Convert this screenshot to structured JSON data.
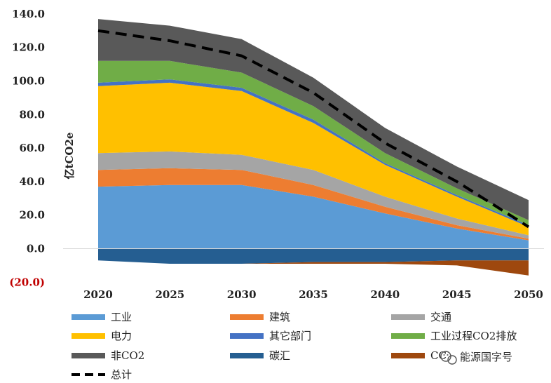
{
  "chart_data": {
    "type": "area",
    "title": "",
    "ylabel": "亿tCO2e",
    "xlabel": "",
    "x": [
      2020,
      2025,
      2030,
      2035,
      2040,
      2045,
      2050
    ],
    "ylim": [
      -20,
      140
    ],
    "yticks": [
      -20,
      0,
      20,
      40,
      60,
      80,
      100,
      120,
      140
    ],
    "ytick_labels": [
      "(20.0)",
      "0.0",
      "20.0",
      "40.0",
      "60.0",
      "80.0",
      "100.0",
      "120.0",
      "140.0"
    ],
    "grid": false,
    "legend_position": "bottom",
    "series": [
      {
        "name": "工业",
        "color": "#5b9bd5",
        "values": [
          37,
          38,
          38,
          31,
          21,
          12,
          5
        ]
      },
      {
        "name": "建筑",
        "color": "#ed7d31",
        "values": [
          10,
          10,
          9,
          7,
          4,
          2,
          1
        ]
      },
      {
        "name": "交通",
        "color": "#a5a5a5",
        "values": [
          10,
          10,
          9,
          9,
          6,
          4,
          2
        ]
      },
      {
        "name": "电力",
        "color": "#ffc000",
        "values": [
          40,
          41,
          38,
          28,
          19,
          13,
          5
        ]
      },
      {
        "name": "其它部门",
        "color": "#4472c4",
        "values": [
          2,
          2,
          2,
          2,
          1,
          1,
          1
        ]
      },
      {
        "name": "工业过程CO2排放",
        "color": "#70ad47",
        "values": [
          13,
          11,
          9,
          8,
          6,
          4,
          3
        ]
      },
      {
        "name": "非CO2",
        "color": "#595959",
        "values": [
          25,
          21,
          20,
          17,
          15,
          13,
          12
        ]
      },
      {
        "name": "碳汇",
        "color": "#255e91",
        "values": [
          -7,
          -9,
          -9,
          -8,
          -8,
          -7,
          -7
        ]
      },
      {
        "name": "CCUS",
        "color": "#9e480e",
        "values": [
          0,
          0,
          0,
          -1,
          -1,
          -3,
          -9
        ]
      }
    ],
    "total": {
      "name": "总计",
      "color": "#000000",
      "values": [
        130,
        124,
        115,
        93,
        63,
        40,
        13
      ]
    },
    "legend_visible_text": [
      "工业",
      "建筑",
      "交通",
      "电力",
      "其它部门",
      "工业过程CO2排放",
      "非CO2",
      "碳汇",
      "CC",
      "总计"
    ]
  },
  "watermark": {
    "text": "能源国字号",
    "icon": "wechat-icon"
  }
}
